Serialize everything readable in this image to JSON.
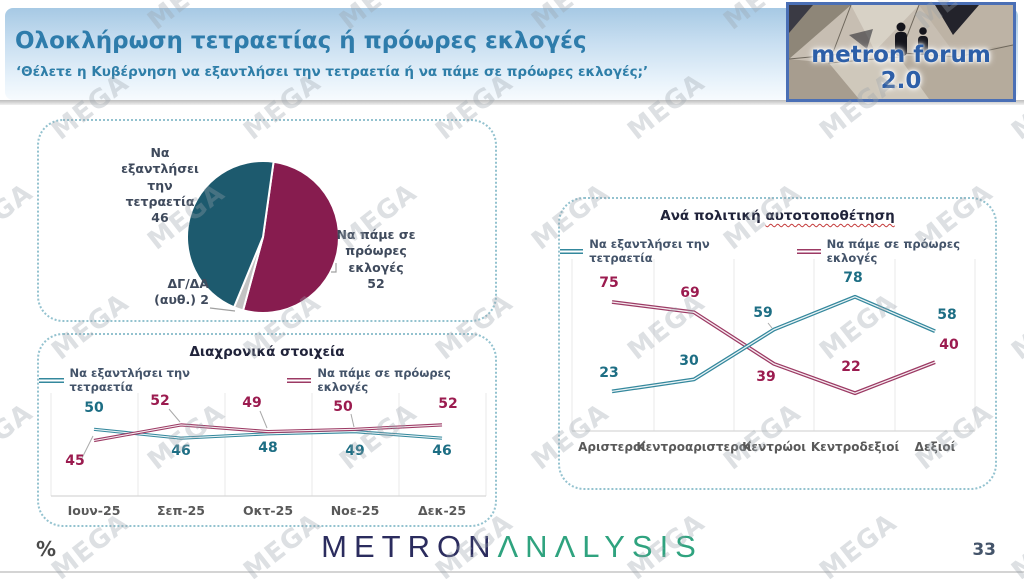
{
  "slide": {
    "title": "Ολοκλήρωση τετραετίας ή πρόωρες εκλογές",
    "subtitle": "‘Θέλετε η Κυβέρνηση να εξαντλήσει την τετραετία ή να πάμε σε πρόωρες εκλογές;’",
    "page_number": "33",
    "percent_note": "%"
  },
  "logo": {
    "text": "metron forum 2.0"
  },
  "watermark": {
    "text": "MEGA"
  },
  "brand": {
    "part1": "METRON",
    "part2": "ΛNΛLYSIS"
  },
  "colors": {
    "accent_blue": "#2E7CAB",
    "teal_line": "#34889D",
    "maroon_line": "#9C3A64",
    "teal_label": "#1D6E84",
    "maroon_label": "#9B1B4F",
    "pie_teal": "#1D5A6E",
    "pie_maroon": "#871C4F",
    "pie_gray": "#C3C3C3"
  },
  "chart_data": [
    {
      "type": "pie",
      "start_angle_deg": 8,
      "slices": [
        {
          "label": "Να πάμε σε πρόωρες εκλογές",
          "value": 52,
          "color": "#871C4F"
        },
        {
          "label": "ΔΓ/ΔΑ (αυθ.)",
          "value": 2,
          "color": "#C3C3C3"
        },
        {
          "label": "Να εξαντλήσει την τετραετία",
          "value": 46,
          "color": "#1D5A6E"
        }
      ]
    },
    {
      "type": "line",
      "title": "Διαχρονικά στοιχεία",
      "categories": [
        "Ιουν-25",
        "Σεπ-25",
        "Οκτ-25",
        "Νοε-25",
        "Δεκ-25"
      ],
      "series": [
        {
          "name": "Να εξαντλήσει την τετραετία",
          "color": "#34889D",
          "label_color": "#1D6E84",
          "values": [
            50,
            46,
            48,
            49,
            46
          ]
        },
        {
          "name": "Να πάμε σε πρόωρες εκλογές",
          "color": "#9C3A64",
          "label_color": "#9B1B4F",
          "values": [
            45,
            52,
            49,
            50,
            52
          ]
        }
      ],
      "ylim": [
        20,
        65
      ],
      "grid": "vertical",
      "legend_position": "top"
    },
    {
      "type": "line",
      "title_prefix": "Ανά πολιτική ",
      "title_underlined": "αυτοτοποθέτηση",
      "categories": [
        "Αριστεροί",
        "Κεντροαριστεροί",
        "Κεντρώοι",
        "Κεντροδεξιοί",
        "Δεξιοί"
      ],
      "series": [
        {
          "name": "Να εξαντλήσει την τετραετία",
          "color": "#34889D",
          "label_color": "#1D6E84",
          "values": [
            23,
            30,
            59,
            78,
            58
          ]
        },
        {
          "name": "Να πάμε σε πρόωρες εκλογές",
          "color": "#9C3A64",
          "label_color": "#9B1B4F",
          "values": [
            75,
            69,
            39,
            22,
            40
          ]
        }
      ],
      "ylim": [
        0,
        100
      ],
      "grid": "vertical",
      "legend_position": "top"
    }
  ]
}
